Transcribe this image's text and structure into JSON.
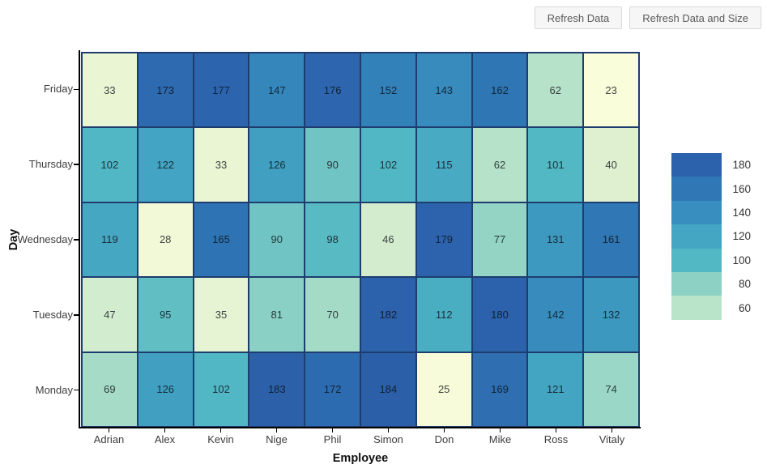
{
  "toolbar": {
    "refresh_data": "Refresh Data",
    "refresh_data_and_size": "Refresh Data and Size"
  },
  "chart_data": {
    "type": "heatmap",
    "title": "",
    "xlabel": "Employee",
    "ylabel": "Day",
    "x_categories": [
      "Adrian",
      "Alex",
      "Kevin",
      "Nige",
      "Phil",
      "Simon",
      "Don",
      "Mike",
      "Ross",
      "Vitaly"
    ],
    "y_categories": [
      "Friday",
      "Thursday",
      "Wednesday",
      "Tuesday",
      "Monday"
    ],
    "series": [
      {
        "name": "Friday",
        "values": [
          33,
          173,
          177,
          147,
          176,
          152,
          143,
          162,
          62,
          23
        ]
      },
      {
        "name": "Thursday",
        "values": [
          102,
          122,
          33,
          126,
          90,
          102,
          115,
          62,
          101,
          40
        ]
      },
      {
        "name": "Wednesday",
        "values": [
          119,
          28,
          165,
          90,
          98,
          46,
          179,
          77,
          131,
          161
        ]
      },
      {
        "name": "Tuesday",
        "values": [
          47,
          95,
          35,
          81,
          70,
          182,
          112,
          180,
          142,
          132
        ]
      },
      {
        "name": "Monday",
        "values": [
          69,
          126,
          102,
          183,
          172,
          184,
          25,
          169,
          121,
          74
        ]
      }
    ],
    "legend": {
      "position": "right",
      "labels": [
        "180",
        "160",
        "140",
        "120",
        "100",
        "80",
        "60"
      ],
      "values": [
        180,
        160,
        140,
        120,
        100,
        80,
        60
      ]
    },
    "colormap": {
      "name": "YlGnBu",
      "stops": [
        [
          20,
          "#ffffdc"
        ],
        [
          40,
          "#def0d0"
        ],
        [
          60,
          "#bae4ca"
        ],
        [
          80,
          "#8dd1c4"
        ],
        [
          100,
          "#52b9c4"
        ],
        [
          120,
          "#45a6c3"
        ],
        [
          140,
          "#388ebe"
        ],
        [
          160,
          "#2f78b5"
        ],
        [
          180,
          "#2c62ac"
        ],
        [
          200,
          "#29589f"
        ]
      ]
    },
    "grid_line_color": "#1e3d6e",
    "axis_line_color": "#000000"
  }
}
